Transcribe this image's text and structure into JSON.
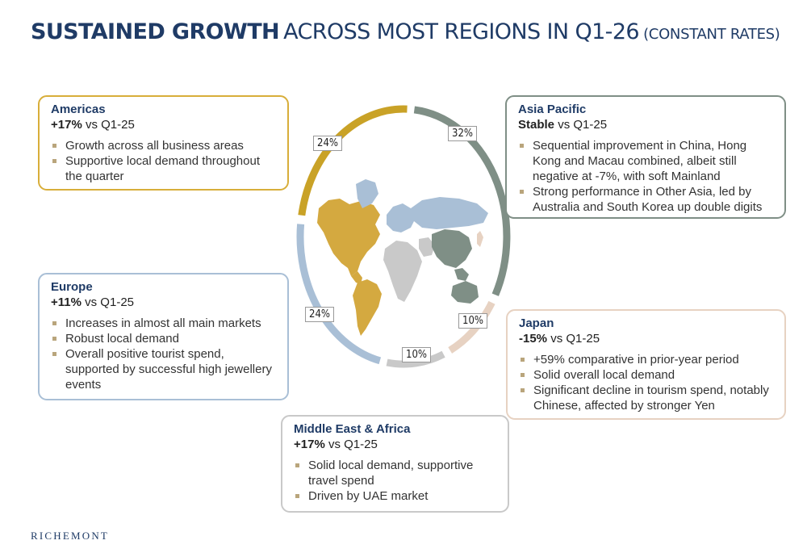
{
  "title": {
    "bold": "SUSTAINED GROWTH",
    "regular": "ACROSS MOST REGIONS IN Q1-26",
    "small": "(CONSTANT RATES)"
  },
  "regions": {
    "americas": {
      "name": "Americas",
      "change": "+17%",
      "suffix": "vs Q1-25",
      "bullets": [
        "Growth across all business areas",
        "Supportive local demand throughout the quarter"
      ]
    },
    "asia_pacific": {
      "name": "Asia Pacific",
      "change": "Stable",
      "suffix": "vs Q1-25",
      "bullets": [
        "Sequential improvement in China, Hong Kong and Macau combined, albeit still negative at -7%, with soft Mainland",
        "Strong performance in Other Asia, led by Australia and South Korea up double digits"
      ]
    },
    "europe": {
      "name": "Europe",
      "change": "+11%",
      "suffix": "vs Q1-25",
      "bullets": [
        "Increases in almost all main markets",
        "Robust local demand",
        "Overall positive tourist spend, supported by successful high jewellery events"
      ]
    },
    "japan": {
      "name": "Japan",
      "change": "-15%",
      "suffix": "vs Q1-25",
      "bullets": [
        "+59% comparative in prior-year period",
        "Solid overall local demand",
        "Significant decline in tourism spend, notably Chinese, affected by stronger Yen"
      ]
    },
    "mea": {
      "name": "Middle East & Africa",
      "change": "+17%",
      "suffix": "vs Q1-25",
      "bullets": [
        "Solid local demand, supportive travel spend",
        "Driven by UAE market"
      ]
    }
  },
  "chart_data": {
    "type": "pie",
    "categories": [
      "Asia Pacific",
      "Japan",
      "Middle East & Africa",
      "Europe",
      "Americas"
    ],
    "values": [
      32,
      10,
      10,
      24,
      24
    ],
    "labels": [
      "32%",
      "10%",
      "10%",
      "24%",
      "24%"
    ],
    "colors": [
      "#7f8f86",
      "#e7d2c2",
      "#c9c9c9",
      "#a9bfd6",
      "#c9a227"
    ]
  },
  "map_colors": {
    "americas": "#d4a940",
    "europe": "#a9bfd6",
    "asia_pacific": "#7f8f86",
    "mea": "#c9c9c9",
    "japan": "#e7d2c2"
  },
  "logo": "RICHEMONT"
}
